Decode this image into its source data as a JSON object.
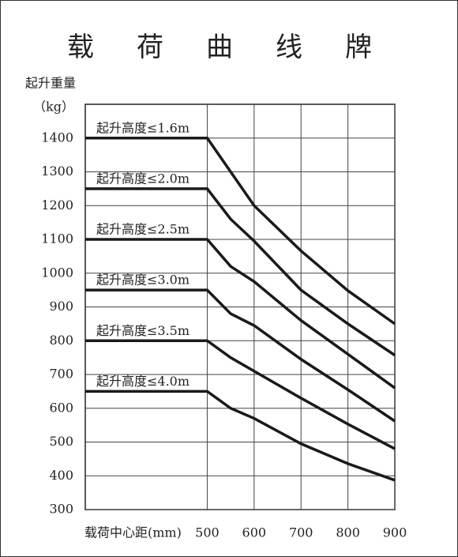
{
  "chart_data": {
    "type": "line",
    "title": "载荷曲线牌",
    "y_label": "起升重量",
    "y_unit": "（kg）",
    "x_label": "载荷中心距(mm)",
    "x": [
      240,
      500,
      550,
      600,
      700,
      800,
      900
    ],
    "series": [
      {
        "name": "起升高度≤1.6m",
        "color": "#1a1a1a",
        "values": [
          1400,
          1400,
          1300,
          1200,
          1066,
          948,
          850
        ]
      },
      {
        "name": "起升高度≤2.0m",
        "color": "#1a1a1a",
        "values": [
          1250,
          1250,
          1160,
          1095,
          950,
          850,
          757
        ]
      },
      {
        "name": "起升高度≤2.5m",
        "color": "#1a1a1a",
        "values": [
          1100,
          1100,
          1020,
          975,
          860,
          760,
          660
        ]
      },
      {
        "name": "起升高度≤3.0m",
        "color": "#1a1a1a",
        "values": [
          950,
          950,
          880,
          845,
          745,
          655,
          562
        ]
      },
      {
        "name": "起升高度≤3.5m",
        "color": "#1a1a1a",
        "values": [
          800,
          800,
          750,
          710,
          630,
          553,
          480
        ]
      },
      {
        "name": "起升高度≤4.0m",
        "color": "#1a1a1a",
        "values": [
          650,
          650,
          600,
          570,
          495,
          436,
          387
        ]
      }
    ],
    "xlim": [
      240,
      900
    ],
    "ylim": [
      300,
      1500
    ],
    "xticks": [
      500,
      600,
      700,
      800,
      900
    ],
    "yticks": [
      300,
      400,
      500,
      600,
      700,
      800,
      900,
      1000,
      1100,
      1200,
      1300,
      1400
    ],
    "grid": true
  }
}
